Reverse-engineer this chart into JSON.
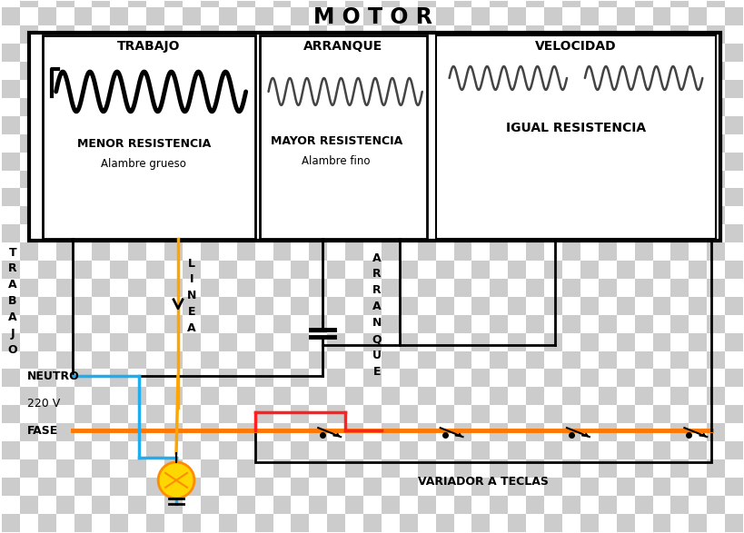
{
  "title": "M O T O R",
  "labels": {
    "trabajo": "TRABAJO",
    "arranque": "ARRANQUE",
    "velocidad": "VELOCIDAD",
    "menor_res": "MENOR RESISTENCIA",
    "alambre_grueso": "Alambre grueso",
    "mayor_res": "MAYOR RESISTENCIA",
    "alambre_fino": "Alambre fino",
    "igual_res": "IGUAL RESISTENCIA",
    "neutro": "NEUTRO",
    "volts": "220 V",
    "fase": "FASE",
    "variador": "VARIADOR A TECLAS",
    "trabajo_vert": [
      "T",
      "R",
      "A",
      "B",
      "A",
      "J",
      "O"
    ],
    "linea_vert": [
      "L",
      "I",
      "N",
      "E",
      "A"
    ],
    "arranque_vert": [
      "A",
      "R",
      "R",
      "A",
      "N",
      "Q",
      "U",
      "E"
    ]
  },
  "colors": {
    "black": "#000000",
    "orange_wire": "#FFA500",
    "blue_wire": "#1EAEF0",
    "red_wire": "#FF2020",
    "orange_fase": "#FF7700",
    "white": "#ffffff",
    "checker_a": "#cccccc",
    "checker_b": "#ffffff"
  },
  "layout": {
    "fig_w": 8.2,
    "fig_h": 5.87,
    "dpi": 100
  }
}
